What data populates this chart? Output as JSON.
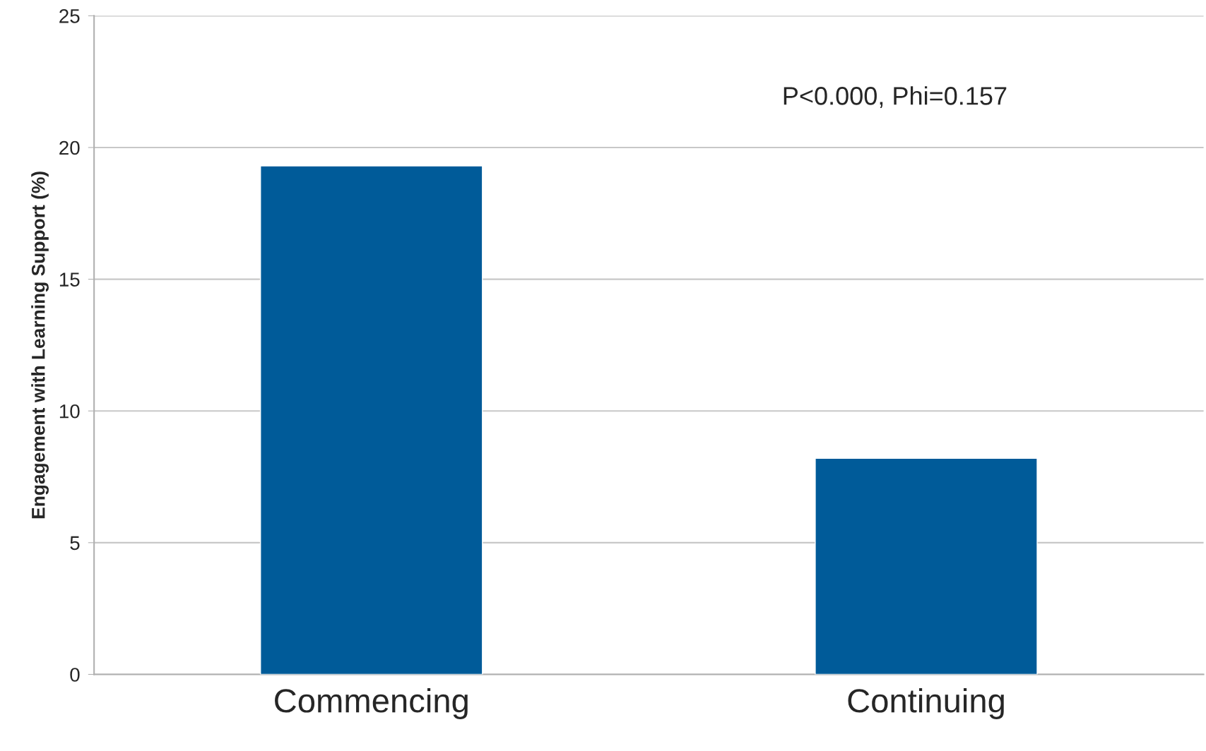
{
  "chart_data": {
    "type": "bar",
    "ylabel": "Engagement with Learning Support (%)",
    "categories": [
      "Commencing",
      "Continuing"
    ],
    "values": [
      19.3,
      8.2
    ],
    "color": "#005b99",
    "ylim": [
      0,
      25
    ],
    "yticks": [
      0,
      5,
      10,
      15,
      20,
      25
    ],
    "grid": "y",
    "legend": false,
    "annotations": [
      "P<0.000, Phi=0.157"
    ]
  }
}
